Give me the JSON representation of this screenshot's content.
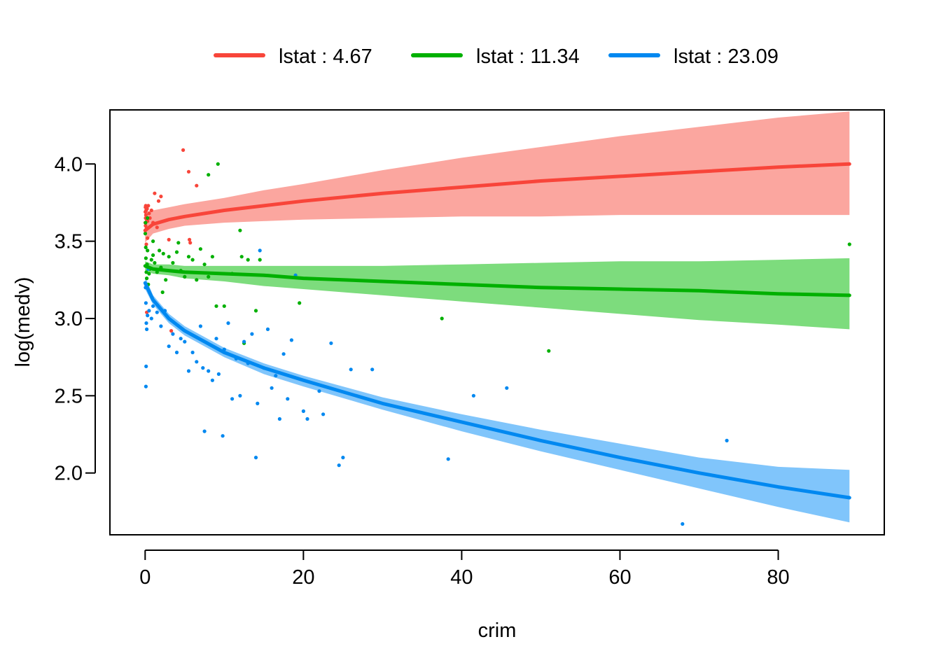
{
  "chart_data": {
    "type": "line",
    "title": "",
    "xlabel": "crim",
    "ylabel": "log(medv)",
    "xlim": [
      -4.45,
      93.4
    ],
    "ylim": [
      1.6,
      4.35
    ],
    "x_ticks": [
      0,
      20,
      40,
      60,
      80
    ],
    "x_tick_labels": [
      "0",
      "20",
      "40",
      "60",
      "80"
    ],
    "y_ticks": [
      2.0,
      2.5,
      3.0,
      3.5,
      4.0
    ],
    "y_tick_labels": [
      "2.0",
      "2.5",
      "3.0",
      "3.5",
      "4.0"
    ],
    "grid": false,
    "legend_position": "top",
    "series": [
      {
        "name": "lstat : 4.67",
        "color": "#f8453a",
        "band_color": "#fba69f",
        "x": [
          0,
          1,
          3,
          5,
          10,
          15,
          20,
          30,
          40,
          50,
          60,
          70,
          80,
          89
        ],
        "fit": [
          3.57,
          3.61,
          3.64,
          3.66,
          3.7,
          3.73,
          3.76,
          3.81,
          3.85,
          3.89,
          3.92,
          3.95,
          3.98,
          4.0
        ],
        "lower": [
          3.49,
          3.55,
          3.58,
          3.6,
          3.62,
          3.63,
          3.64,
          3.65,
          3.66,
          3.66,
          3.67,
          3.67,
          3.67,
          3.67
        ],
        "upper": [
          3.69,
          3.7,
          3.72,
          3.74,
          3.78,
          3.83,
          3.87,
          3.96,
          4.04,
          4.11,
          4.18,
          4.24,
          4.3,
          4.34
        ],
        "points": [
          [
            0.01,
            3.57
          ],
          [
            0.02,
            3.62
          ],
          [
            0.03,
            3.69
          ],
          [
            0.04,
            3.72
          ],
          [
            0.05,
            3.6
          ],
          [
            0.06,
            3.65
          ],
          [
            0.08,
            3.73
          ],
          [
            0.1,
            3.67
          ],
          [
            0.12,
            3.7
          ],
          [
            0.15,
            3.58
          ],
          [
            0.2,
            3.64
          ],
          [
            0.25,
            3.71
          ],
          [
            0.3,
            3.63
          ],
          [
            0.4,
            3.73
          ],
          [
            0.5,
            3.68
          ],
          [
            0.6,
            3.65
          ],
          [
            0.8,
            3.7
          ],
          [
            1.0,
            3.62
          ],
          [
            1.2,
            3.81
          ],
          [
            1.5,
            3.59
          ],
          [
            1.7,
            3.76
          ],
          [
            2.0,
            3.79
          ],
          [
            3.3,
            2.92
          ],
          [
            4.8,
            4.09
          ],
          [
            5.5,
            3.95
          ],
          [
            6.5,
            3.86
          ],
          [
            5.6,
            3.51
          ],
          [
            5.7,
            3.49
          ],
          [
            0.2,
            3.04
          ],
          [
            0.15,
            3.48
          ],
          [
            0.3,
            3.52
          ],
          [
            3.0,
            3.51
          ]
        ]
      },
      {
        "name": "lstat : 11.34",
        "color": "#00b000",
        "band_color": "#7ddc7d",
        "x": [
          0,
          1,
          3,
          5,
          10,
          15,
          20,
          30,
          40,
          50,
          60,
          70,
          80,
          89
        ],
        "fit": [
          3.34,
          3.32,
          3.31,
          3.3,
          3.29,
          3.28,
          3.26,
          3.24,
          3.22,
          3.2,
          3.19,
          3.18,
          3.16,
          3.15
        ],
        "lower": [
          3.31,
          3.29,
          3.28,
          3.26,
          3.24,
          3.21,
          3.19,
          3.15,
          3.11,
          3.07,
          3.03,
          2.99,
          2.96,
          2.93
        ],
        "upper": [
          3.37,
          3.35,
          3.35,
          3.34,
          3.34,
          3.34,
          3.34,
          3.34,
          3.35,
          3.36,
          3.37,
          3.37,
          3.38,
          3.39
        ],
        "points": [
          [
            0.02,
            3.55
          ],
          [
            0.05,
            3.62
          ],
          [
            0.08,
            3.46
          ],
          [
            0.1,
            3.39
          ],
          [
            0.15,
            3.3
          ],
          [
            0.2,
            3.26
          ],
          [
            0.25,
            3.35
          ],
          [
            0.3,
            3.44
          ],
          [
            0.4,
            3.22
          ],
          [
            0.5,
            3.29
          ],
          [
            0.6,
            3.32
          ],
          [
            0.8,
            3.38
          ],
          [
            1.0,
            3.41
          ],
          [
            1.2,
            3.36
          ],
          [
            1.5,
            3.3
          ],
          [
            1.8,
            3.44
          ],
          [
            2.0,
            3.33
          ],
          [
            2.3,
            3.42
          ],
          [
            2.6,
            3.25
          ],
          [
            3.0,
            3.4
          ],
          [
            3.5,
            3.36
          ],
          [
            4.0,
            3.43
          ],
          [
            4.5,
            3.31
          ],
          [
            5.0,
            3.27
          ],
          [
            5.5,
            3.4
          ],
          [
            6.0,
            3.38
          ],
          [
            6.5,
            3.25
          ],
          [
            7.0,
            3.45
          ],
          [
            7.5,
            3.35
          ],
          [
            8.0,
            3.27
          ],
          [
            8.5,
            3.4
          ],
          [
            9.0,
            3.08
          ],
          [
            9.2,
            4.0
          ],
          [
            8.0,
            3.93
          ],
          [
            10.0,
            3.08
          ],
          [
            11.0,
            3.29
          ],
          [
            12.0,
            3.57
          ],
          [
            12.2,
            3.4
          ],
          [
            12.5,
            2.84
          ],
          [
            13.0,
            3.38
          ],
          [
            14.0,
            3.05
          ],
          [
            14.5,
            3.38
          ],
          [
            19.5,
            3.1
          ],
          [
            37.5,
            3.0
          ],
          [
            51.0,
            2.79
          ],
          [
            89.0,
            3.48
          ],
          [
            0.3,
            3.65
          ],
          [
            1.0,
            3.5
          ],
          [
            2.2,
            3.17
          ],
          [
            4.2,
            3.49
          ]
        ]
      },
      {
        "name": "lstat : 23.09",
        "color": "#0088f0",
        "band_color": "#80c5fb",
        "x": [
          0,
          1,
          3,
          5,
          10,
          15,
          20,
          30,
          40,
          50,
          60,
          70,
          80,
          89
        ],
        "fit": [
          3.23,
          3.12,
          3.0,
          2.92,
          2.78,
          2.68,
          2.6,
          2.45,
          2.33,
          2.21,
          2.1,
          2.0,
          1.91,
          1.84
        ],
        "lower": [
          3.19,
          3.09,
          2.97,
          2.89,
          2.75,
          2.64,
          2.56,
          2.41,
          2.27,
          2.14,
          2.02,
          1.9,
          1.78,
          1.68
        ],
        "upper": [
          3.27,
          3.15,
          3.03,
          2.95,
          2.81,
          2.71,
          2.63,
          2.49,
          2.38,
          2.28,
          2.19,
          2.1,
          2.04,
          2.02
        ],
        "points": [
          [
            0.05,
            3.2
          ],
          [
            0.1,
            3.1
          ],
          [
            0.15,
            2.97
          ],
          [
            0.2,
            2.93
          ],
          [
            0.12,
            2.69
          ],
          [
            0.1,
            2.56
          ],
          [
            0.3,
            3.02
          ],
          [
            0.5,
            3.05
          ],
          [
            0.8,
            3.0
          ],
          [
            1.0,
            3.08
          ],
          [
            1.5,
            3.04
          ],
          [
            2.0,
            2.95
          ],
          [
            2.5,
            3.05
          ],
          [
            3.0,
            2.82
          ],
          [
            3.5,
            2.9
          ],
          [
            4.0,
            2.78
          ],
          [
            4.5,
            2.87
          ],
          [
            5.0,
            2.85
          ],
          [
            5.5,
            2.66
          ],
          [
            6.0,
            2.78
          ],
          [
            6.5,
            2.72
          ],
          [
            7.0,
            2.95
          ],
          [
            7.3,
            2.68
          ],
          [
            7.5,
            2.27
          ],
          [
            8.0,
            2.66
          ],
          [
            8.5,
            2.6
          ],
          [
            9.0,
            2.87
          ],
          [
            9.3,
            2.64
          ],
          [
            9.8,
            2.24
          ],
          [
            10.0,
            2.8
          ],
          [
            10.5,
            2.97
          ],
          [
            11.0,
            2.48
          ],
          [
            11.5,
            2.74
          ],
          [
            12.0,
            2.5
          ],
          [
            12.5,
            2.85
          ],
          [
            13.0,
            2.71
          ],
          [
            13.5,
            2.9
          ],
          [
            14.0,
            2.1
          ],
          [
            14.2,
            2.45
          ],
          [
            14.5,
            3.44
          ],
          [
            15.0,
            2.68
          ],
          [
            15.5,
            2.93
          ],
          [
            16.0,
            2.55
          ],
          [
            16.5,
            2.63
          ],
          [
            17.0,
            2.35
          ],
          [
            17.5,
            2.77
          ],
          [
            18.0,
            2.48
          ],
          [
            18.5,
            2.86
          ],
          [
            19.0,
            3.28
          ],
          [
            20.0,
            2.4
          ],
          [
            20.5,
            2.35
          ],
          [
            22.0,
            2.53
          ],
          [
            22.5,
            2.38
          ],
          [
            23.5,
            2.84
          ],
          [
            24.5,
            2.05
          ],
          [
            25.0,
            2.1
          ],
          [
            26.0,
            2.67
          ],
          [
            28.7,
            2.67
          ],
          [
            38.3,
            2.09
          ],
          [
            41.5,
            2.5
          ],
          [
            45.7,
            2.55
          ],
          [
            67.9,
            1.67
          ],
          [
            73.5,
            2.21
          ],
          [
            0.4,
            3.32
          ]
        ]
      }
    ]
  }
}
